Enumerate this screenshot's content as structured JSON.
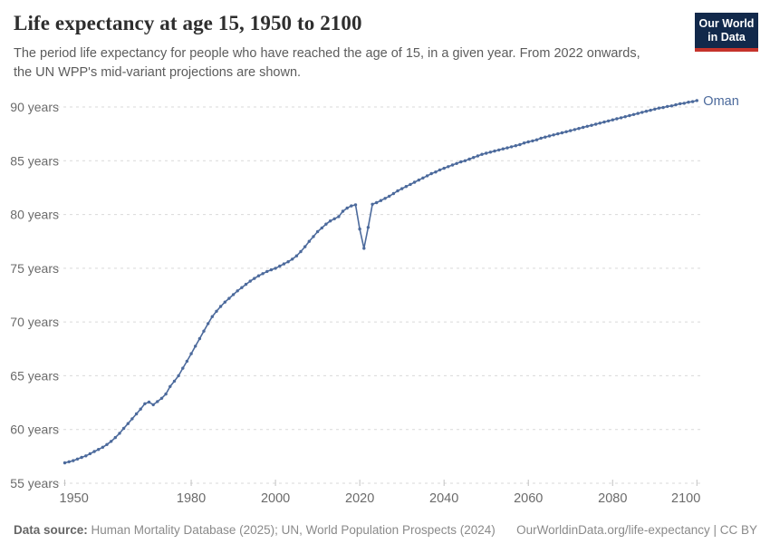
{
  "header": {
    "title": "Life expectancy at age 15, 1950 to 2100",
    "subtitle_line1": "The period life expectancy for people who have reached the age of 15, in a given year. From 2022 onwards,",
    "subtitle_line2": "the UN WPP's mid-variant projections are shown."
  },
  "logo": {
    "line1": "Our World",
    "line2": "in Data",
    "bg_color": "#12294B",
    "accent_color": "#C5332B"
  },
  "footer": {
    "datasource_label": "Data source:",
    "datasource_text": " Human Mortality Database (2025); UN, World Population Prospects (2024)",
    "link_text": "OurWorldinData.org/life-expectancy | CC BY"
  },
  "chart_data": {
    "type": "line",
    "title": "Life expectancy at age 15, 1950 to 2100",
    "entity": "Oman",
    "line_color": "#4C6A9C",
    "grid_color": "#d9d9d9",
    "tick_color": "#c2c2c2",
    "axis_text_color": "#6b6b6b",
    "xlabel": "",
    "ylabel": "",
    "grid": "horizontal-dashed",
    "legend_position": "end-of-line-label",
    "ylim": [
      55,
      91.5
    ],
    "xlim": [
      1950,
      2100
    ],
    "y_ticks": [
      55,
      60,
      65,
      70,
      75,
      80,
      85,
      90
    ],
    "y_tick_suffix": " years",
    "x_ticks": [
      1950,
      1980,
      2000,
      2020,
      2040,
      2060,
      2080,
      2100
    ],
    "x_start": 1950,
    "values": [
      56.9,
      57.0,
      57.1,
      57.25,
      57.4,
      57.55,
      57.75,
      57.95,
      58.15,
      58.35,
      58.6,
      58.9,
      59.25,
      59.65,
      60.1,
      60.55,
      61.0,
      61.45,
      61.9,
      62.4,
      62.55,
      62.3,
      62.6,
      62.9,
      63.3,
      64.0,
      64.5,
      65.0,
      65.7,
      66.35,
      67.05,
      67.75,
      68.45,
      69.15,
      69.85,
      70.5,
      71.0,
      71.45,
      71.85,
      72.2,
      72.55,
      72.9,
      73.2,
      73.5,
      73.8,
      74.05,
      74.3,
      74.5,
      74.7,
      74.85,
      75.0,
      75.2,
      75.4,
      75.6,
      75.85,
      76.15,
      76.55,
      77.0,
      77.5,
      77.95,
      78.4,
      78.75,
      79.1,
      79.4,
      79.6,
      79.8,
      80.3,
      80.6,
      80.8,
      80.9,
      78.65,
      76.85,
      78.8,
      80.95,
      81.1,
      81.3,
      81.5,
      81.7,
      81.95,
      82.2,
      82.4,
      82.6,
      82.8,
      83.0,
      83.2,
      83.4,
      83.6,
      83.8,
      83.95,
      84.15,
      84.3,
      84.45,
      84.6,
      84.75,
      84.9,
      85.0,
      85.15,
      85.3,
      85.45,
      85.6,
      85.7,
      85.8,
      85.9,
      86.0,
      86.1,
      86.2,
      86.3,
      86.4,
      86.5,
      86.65,
      86.75,
      86.85,
      86.95,
      87.1,
      87.2,
      87.3,
      87.4,
      87.5,
      87.6,
      87.7,
      87.8,
      87.9,
      88.0,
      88.1,
      88.2,
      88.3,
      88.4,
      88.5,
      88.6,
      88.7,
      88.8,
      88.9,
      89.0,
      89.1,
      89.2,
      89.3,
      89.4,
      89.5,
      89.6,
      89.7,
      89.8,
      89.9,
      89.95,
      90.05,
      90.1,
      90.2,
      90.3,
      90.35,
      90.45,
      90.5,
      90.6
    ]
  }
}
